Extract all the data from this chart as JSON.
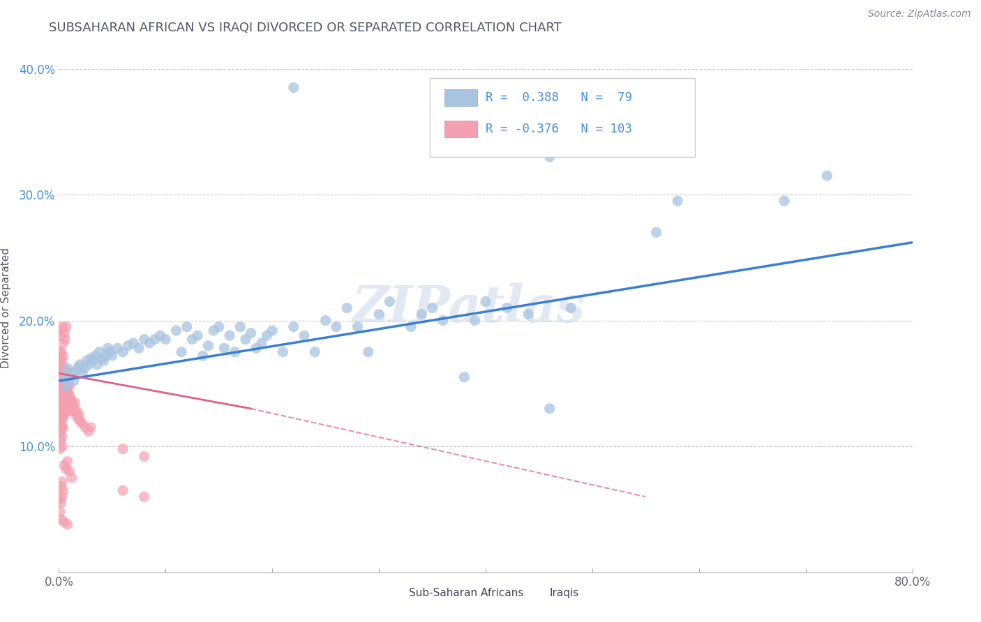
{
  "title": "SUBSAHARAN AFRICAN VS IRAQI DIVORCED OR SEPARATED CORRELATION CHART",
  "source": "Source: ZipAtlas.com",
  "ylabel": "Divorced or Separated",
  "xmin": 0.0,
  "xmax": 0.8,
  "ymin": 0.0,
  "ymax": 0.42,
  "xticks": [
    0.0,
    0.1,
    0.2,
    0.3,
    0.4,
    0.5,
    0.6,
    0.7,
    0.8
  ],
  "yticks": [
    0.0,
    0.1,
    0.2,
    0.3,
    0.4
  ],
  "blue_R": 0.388,
  "blue_N": 79,
  "pink_R": -0.376,
  "pink_N": 103,
  "blue_color": "#a8c4e0",
  "pink_color": "#f4a0b0",
  "blue_line_color": "#3a7fd5",
  "pink_line_color": "#e06080",
  "title_color": "#555566",
  "watermark": "ZIPatlas",
  "blue_scatter": [
    [
      0.005,
      0.155
    ],
    [
      0.007,
      0.148
    ],
    [
      0.008,
      0.162
    ],
    [
      0.01,
      0.155
    ],
    [
      0.012,
      0.158
    ],
    [
      0.014,
      0.152
    ],
    [
      0.016,
      0.16
    ],
    [
      0.018,
      0.163
    ],
    [
      0.02,
      0.165
    ],
    [
      0.022,
      0.158
    ],
    [
      0.024,
      0.162
    ],
    [
      0.026,
      0.168
    ],
    [
      0.028,
      0.165
    ],
    [
      0.03,
      0.17
    ],
    [
      0.032,
      0.168
    ],
    [
      0.034,
      0.172
    ],
    [
      0.036,
      0.165
    ],
    [
      0.038,
      0.175
    ],
    [
      0.04,
      0.17
    ],
    [
      0.042,
      0.168
    ],
    [
      0.044,
      0.172
    ],
    [
      0.046,
      0.178
    ],
    [
      0.048,
      0.175
    ],
    [
      0.05,
      0.172
    ],
    [
      0.055,
      0.178
    ],
    [
      0.06,
      0.175
    ],
    [
      0.065,
      0.18
    ],
    [
      0.07,
      0.182
    ],
    [
      0.075,
      0.178
    ],
    [
      0.08,
      0.185
    ],
    [
      0.085,
      0.182
    ],
    [
      0.09,
      0.185
    ],
    [
      0.095,
      0.188
    ],
    [
      0.1,
      0.185
    ],
    [
      0.11,
      0.192
    ],
    [
      0.115,
      0.175
    ],
    [
      0.12,
      0.195
    ],
    [
      0.125,
      0.185
    ],
    [
      0.13,
      0.188
    ],
    [
      0.135,
      0.172
    ],
    [
      0.14,
      0.18
    ],
    [
      0.145,
      0.192
    ],
    [
      0.15,
      0.195
    ],
    [
      0.155,
      0.178
    ],
    [
      0.16,
      0.188
    ],
    [
      0.165,
      0.175
    ],
    [
      0.17,
      0.195
    ],
    [
      0.175,
      0.185
    ],
    [
      0.18,
      0.19
    ],
    [
      0.185,
      0.178
    ],
    [
      0.19,
      0.182
    ],
    [
      0.195,
      0.188
    ],
    [
      0.2,
      0.192
    ],
    [
      0.21,
      0.175
    ],
    [
      0.22,
      0.195
    ],
    [
      0.23,
      0.188
    ],
    [
      0.24,
      0.175
    ],
    [
      0.25,
      0.2
    ],
    [
      0.26,
      0.195
    ],
    [
      0.27,
      0.21
    ],
    [
      0.28,
      0.195
    ],
    [
      0.29,
      0.175
    ],
    [
      0.3,
      0.205
    ],
    [
      0.31,
      0.215
    ],
    [
      0.33,
      0.195
    ],
    [
      0.34,
      0.205
    ],
    [
      0.35,
      0.21
    ],
    [
      0.36,
      0.2
    ],
    [
      0.38,
      0.155
    ],
    [
      0.39,
      0.2
    ],
    [
      0.4,
      0.215
    ],
    [
      0.42,
      0.21
    ],
    [
      0.44,
      0.205
    ],
    [
      0.46,
      0.13
    ],
    [
      0.48,
      0.21
    ],
    [
      0.22,
      0.385
    ],
    [
      0.4,
      0.35
    ],
    [
      0.46,
      0.33
    ],
    [
      0.56,
      0.27
    ],
    [
      0.58,
      0.295
    ],
    [
      0.68,
      0.295
    ],
    [
      0.72,
      0.315
    ]
  ],
  "pink_scatter": [
    [
      0.001,
      0.148
    ],
    [
      0.001,
      0.155
    ],
    [
      0.001,
      0.162
    ],
    [
      0.001,
      0.17
    ],
    [
      0.001,
      0.175
    ],
    [
      0.001,
      0.145
    ],
    [
      0.001,
      0.138
    ],
    [
      0.001,
      0.13
    ],
    [
      0.002,
      0.15
    ],
    [
      0.002,
      0.158
    ],
    [
      0.002,
      0.165
    ],
    [
      0.002,
      0.142
    ],
    [
      0.002,
      0.135
    ],
    [
      0.002,
      0.128
    ],
    [
      0.002,
      0.122
    ],
    [
      0.002,
      0.175
    ],
    [
      0.002,
      0.118
    ],
    [
      0.003,
      0.155
    ],
    [
      0.003,
      0.148
    ],
    [
      0.003,
      0.162
    ],
    [
      0.003,
      0.14
    ],
    [
      0.003,
      0.132
    ],
    [
      0.003,
      0.125
    ],
    [
      0.003,
      0.168
    ],
    [
      0.003,
      0.115
    ],
    [
      0.004,
      0.152
    ],
    [
      0.004,
      0.145
    ],
    [
      0.004,
      0.16
    ],
    [
      0.004,
      0.138
    ],
    [
      0.004,
      0.13
    ],
    [
      0.004,
      0.122
    ],
    [
      0.004,
      0.172
    ],
    [
      0.005,
      0.148
    ],
    [
      0.005,
      0.155
    ],
    [
      0.005,
      0.14
    ],
    [
      0.005,
      0.162
    ],
    [
      0.005,
      0.132
    ],
    [
      0.005,
      0.125
    ],
    [
      0.006,
      0.15
    ],
    [
      0.006,
      0.142
    ],
    [
      0.006,
      0.135
    ],
    [
      0.006,
      0.16
    ],
    [
      0.006,
      0.128
    ],
    [
      0.007,
      0.145
    ],
    [
      0.007,
      0.138
    ],
    [
      0.007,
      0.155
    ],
    [
      0.007,
      0.13
    ],
    [
      0.008,
      0.148
    ],
    [
      0.008,
      0.142
    ],
    [
      0.008,
      0.135
    ],
    [
      0.008,
      0.155
    ],
    [
      0.008,
      0.128
    ],
    [
      0.009,
      0.142
    ],
    [
      0.009,
      0.135
    ],
    [
      0.009,
      0.15
    ],
    [
      0.01,
      0.14
    ],
    [
      0.01,
      0.132
    ],
    [
      0.01,
      0.148
    ],
    [
      0.011,
      0.138
    ],
    [
      0.011,
      0.13
    ],
    [
      0.012,
      0.135
    ],
    [
      0.012,
      0.128
    ],
    [
      0.013,
      0.132
    ],
    [
      0.014,
      0.13
    ],
    [
      0.015,
      0.128
    ],
    [
      0.015,
      0.135
    ],
    [
      0.016,
      0.125
    ],
    [
      0.017,
      0.128
    ],
    [
      0.018,
      0.122
    ],
    [
      0.019,
      0.125
    ],
    [
      0.02,
      0.12
    ],
    [
      0.022,
      0.118
    ],
    [
      0.025,
      0.115
    ],
    [
      0.028,
      0.112
    ],
    [
      0.03,
      0.115
    ],
    [
      0.001,
      0.192
    ],
    [
      0.002,
      0.188
    ],
    [
      0.003,
      0.195
    ],
    [
      0.004,
      0.182
    ],
    [
      0.005,
      0.19
    ],
    [
      0.006,
      0.185
    ],
    [
      0.007,
      0.195
    ],
    [
      0.001,
      0.118
    ],
    [
      0.002,
      0.112
    ],
    [
      0.003,
      0.108
    ],
    [
      0.004,
      0.115
    ],
    [
      0.002,
      0.105
    ],
    [
      0.003,
      0.1
    ],
    [
      0.001,
      0.098
    ],
    [
      0.005,
      0.085
    ],
    [
      0.007,
      0.082
    ],
    [
      0.008,
      0.088
    ],
    [
      0.01,
      0.08
    ],
    [
      0.012,
      0.075
    ],
    [
      0.002,
      0.068
    ],
    [
      0.003,
      0.072
    ],
    [
      0.004,
      0.065
    ],
    [
      0.001,
      0.058
    ],
    [
      0.002,
      0.055
    ],
    [
      0.003,
      0.06
    ],
    [
      0.001,
      0.048
    ],
    [
      0.002,
      0.042
    ],
    [
      0.06,
      0.098
    ],
    [
      0.08,
      0.092
    ],
    [
      0.005,
      0.04
    ],
    [
      0.008,
      0.038
    ],
    [
      0.06,
      0.065
    ],
    [
      0.08,
      0.06
    ]
  ],
  "blue_trendline": [
    [
      0.0,
      0.152
    ],
    [
      0.8,
      0.262
    ]
  ],
  "pink_trendline_solid": [
    [
      0.0,
      0.158
    ],
    [
      0.18,
      0.13
    ]
  ],
  "pink_trendline_dashed": [
    [
      0.18,
      0.13
    ],
    [
      0.55,
      0.06
    ]
  ]
}
